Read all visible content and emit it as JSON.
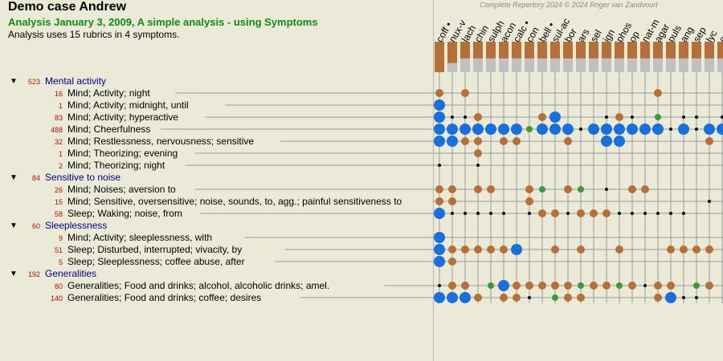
{
  "header": {
    "title": "Demo case Andrew",
    "subtitle": "Analysis January 3, 2009, A simple analysis - using Symptoms",
    "info": "Analysis uses 15 rubrics in 4 symptoms.",
    "copyright": "Complete Repertory 2024 © 2024 Roger van Zandvoort"
  },
  "colors": {
    "background": "#ebe9d7",
    "blue": "#1a6fdb",
    "brown": "#b5703a",
    "green": "#3a9a3a",
    "black": "#000000",
    "bar_brown": "#b5703a",
    "bar_gray": "#c0c0c0",
    "symptom_text": "#00008b",
    "count_text": "#b01010"
  },
  "remedies": [
    {
      "name": "coff •",
      "total": 1.0,
      "coverage": 0.0
    },
    {
      "name": "nux-v",
      "total": 0.75,
      "coverage": 0.3
    },
    {
      "name": "lach",
      "total": 0.57,
      "coverage": 0.45
    },
    {
      "name": "chin",
      "total": 0.57,
      "coverage": 0.45
    },
    {
      "name": "sulph",
      "total": 0.57,
      "coverage": 0.45
    },
    {
      "name": "acon",
      "total": 0.57,
      "coverage": 0.45
    },
    {
      "name": "calc •",
      "total": 0.57,
      "coverage": 0.45
    },
    {
      "name": "con",
      "total": 0.57,
      "coverage": 0.45
    },
    {
      "name": "bell •",
      "total": 0.57,
      "coverage": 0.45
    },
    {
      "name": "sul-ac",
      "total": 0.57,
      "coverage": 0.45
    },
    {
      "name": "bor",
      "total": 0.57,
      "coverage": 0.45
    },
    {
      "name": "ars",
      "total": 0.57,
      "coverage": 0.45
    },
    {
      "name": "sel",
      "total": 0.57,
      "coverage": 0.45
    },
    {
      "name": "ign",
      "total": 0.57,
      "coverage": 0.45
    },
    {
      "name": "phos",
      "total": 0.57,
      "coverage": 0.45
    },
    {
      "name": "op",
      "total": 0.57,
      "coverage": 0.45
    },
    {
      "name": "nat-m",
      "total": 0.57,
      "coverage": 0.45
    },
    {
      "name": "agar",
      "total": 0.57,
      "coverage": 0.45
    },
    {
      "name": "puls",
      "total": 0.57,
      "coverage": 0.45
    },
    {
      "name": "ang",
      "total": 0.57,
      "coverage": 0.45
    },
    {
      "name": "sep",
      "total": 0.57,
      "coverage": 0.45
    },
    {
      "name": "lyc",
      "total": 0.57,
      "coverage": 0.45
    },
    {
      "name": "c",
      "total": 0.57,
      "coverage": 0.45
    }
  ],
  "symptoms": [
    {
      "count": "523",
      "label": "Mental activity",
      "rubrics": [
        {
          "count": "16",
          "label": "Mind; Activity; night",
          "cells": [
            "m",
            "",
            "m",
            "",
            "",
            "",
            "",
            "",
            "",
            "",
            "",
            "",
            "",
            "",
            "",
            "",
            "",
            "m",
            "",
            "",
            "",
            "",
            ""
          ]
        },
        {
          "count": "1",
          "label": "Mind; Activity; midnight, until",
          "cells": [
            "L",
            "",
            "",
            "",
            "",
            "",
            "",
            "",
            "",
            "",
            "",
            "",
            "",
            "",
            "",
            "",
            "",
            "",
            "",
            "",
            "",
            "",
            ""
          ]
        },
        {
          "count": "83",
          "label": "Mind; Activity; hyperactive",
          "cells": [
            "L",
            "d",
            "d",
            "m",
            "",
            "",
            "",
            "",
            "m",
            "L",
            "",
            "",
            "",
            "d",
            "m",
            "d",
            "",
            "g",
            "",
            "d",
            "d",
            "",
            "d"
          ]
        },
        {
          "count": "488",
          "label": "Mind; Cheerfulness",
          "cells": [
            "L",
            "L",
            "L",
            "L",
            "L",
            "L",
            "L",
            "g",
            "L",
            "L",
            "L",
            "d",
            "L",
            "L",
            "L",
            "L",
            "L",
            "L",
            "d",
            "L",
            "d",
            "L",
            "L"
          ]
        },
        {
          "count": "32",
          "label": "Mind; Restlessness, nervousness; sensitive",
          "cells": [
            "L",
            "L",
            "m",
            "m",
            "",
            "m",
            "m",
            "",
            "",
            "",
            "m",
            "",
            "",
            "L",
            "L",
            "",
            "",
            "",
            "",
            "",
            "",
            "m",
            ""
          ]
        },
        {
          "count": "1",
          "label": "Mind; Theorizing; evening",
          "cells": [
            "",
            "",
            "",
            "m",
            "",
            "",
            "",
            "",
            "",
            "",
            "",
            "",
            "",
            "",
            "",
            "",
            "",
            "",
            "",
            "",
            "",
            "",
            ""
          ]
        },
        {
          "count": "2",
          "label": "Mind; Theorizing; night",
          "cells": [
            "d",
            "",
            "",
            "d",
            "",
            "",
            "",
            "",
            "",
            "",
            "",
            "",
            "",
            "",
            "",
            "",
            "",
            "",
            "",
            "",
            "",
            "",
            ""
          ]
        }
      ]
    },
    {
      "count": "84",
      "label": "Sensitive to noise",
      "rubrics": [
        {
          "count": "26",
          "label": "Mind; Noises; aversion to",
          "cells": [
            "m",
            "m",
            "",
            "m",
            "m",
            "",
            "",
            "m",
            "g",
            "",
            "m",
            "g",
            "",
            "d",
            "",
            "m",
            "m",
            "",
            "",
            "",
            "",
            "",
            ""
          ]
        },
        {
          "count": "15",
          "label": "Mind; Sensitive, oversensitive; noise, sounds, to, agg.; painful sensitiveness to",
          "cells": [
            "m",
            "m",
            "",
            "",
            "",
            "",
            "",
            "m",
            "",
            "",
            "",
            "",
            "",
            "",
            "",
            "",
            "",
            "",
            "",
            "",
            "",
            "d",
            ""
          ]
        },
        {
          "count": "58",
          "label": "Sleep; Waking; noise, from",
          "cells": [
            "L",
            "d",
            "d",
            "d",
            "d",
            "d",
            "",
            "d",
            "m",
            "m",
            "d",
            "m",
            "m",
            "m",
            "d",
            "d",
            "d",
            "d",
            "d",
            "d",
            "",
            "",
            ""
          ]
        }
      ]
    },
    {
      "count": "60",
      "label": "Sleeplessness",
      "rubrics": [
        {
          "count": "9",
          "label": "Mind; Activity; sleeplessness, with",
          "cells": [
            "L",
            "",
            "",
            "",
            "",
            "",
            "",
            "",
            "",
            "",
            "",
            "",
            "",
            "",
            "",
            "",
            "",
            "",
            "",
            "",
            "",
            "",
            ""
          ]
        },
        {
          "count": "51",
          "label": "Sleep; Disturbed, interrupted; vivacity, by",
          "cells": [
            "L",
            "m",
            "m",
            "m",
            "m",
            "m",
            "L",
            "",
            "",
            "m",
            "",
            "m",
            "",
            "",
            "m",
            "",
            "",
            "",
            "m",
            "m",
            "m",
            "m",
            ""
          ]
        },
        {
          "count": "5",
          "label": "Sleep; Sleeplessness; coffee abuse, after",
          "cells": [
            "L",
            "m",
            "",
            "",
            "",
            "",
            "",
            "",
            "",
            "",
            "",
            "",
            "",
            "",
            "",
            "",
            "",
            "",
            "",
            "",
            "",
            "",
            ""
          ]
        }
      ]
    },
    {
      "count": "192",
      "label": "Generalities",
      "rubrics": [
        {
          "count": "80",
          "label": "Generalities; Food and drinks; alcohol, alcoholic drinks; amel.",
          "cells": [
            "d",
            "m",
            "m",
            "",
            "g",
            "L",
            "m",
            "m",
            "m",
            "m",
            "m",
            "g",
            "m",
            "m",
            "g",
            "m",
            "d",
            "m",
            "m",
            "",
            "g",
            "m",
            ""
          ]
        },
        {
          "count": "140",
          "label": "Generalities; Food and drinks; coffee; desires",
          "cells": [
            "L",
            "L",
            "L",
            "m",
            "",
            "m",
            "m",
            "d",
            "",
            "g",
            "m",
            "m",
            "",
            "",
            "",
            "",
            "",
            "m",
            "L",
            "d",
            "d",
            "",
            ""
          ]
        }
      ]
    }
  ]
}
